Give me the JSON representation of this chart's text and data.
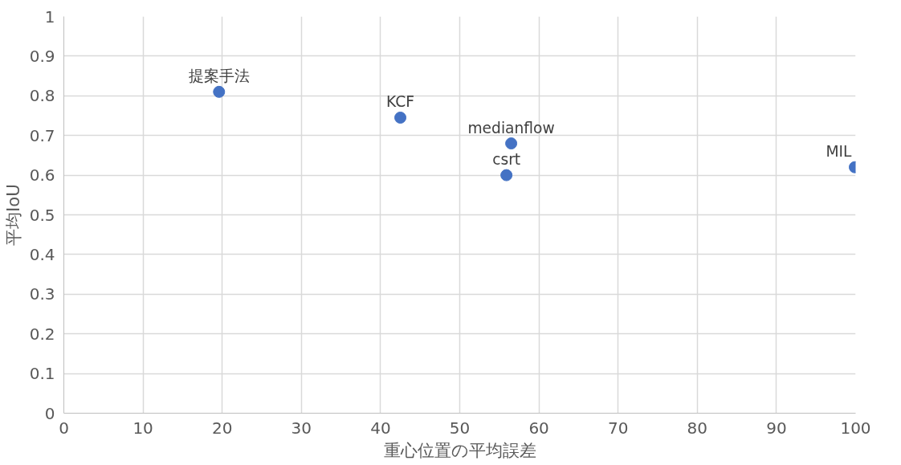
{
  "chart_data": {
    "type": "scatter",
    "xlabel": "重心位置の平均誤差",
    "ylabel": "平均IoU",
    "xlim": [
      0,
      100
    ],
    "ylim": [
      0,
      1
    ],
    "xticks": [
      0,
      10,
      20,
      30,
      40,
      50,
      60,
      70,
      80,
      90,
      100
    ],
    "yticks": [
      0,
      0.1,
      0.2,
      0.3,
      0.4,
      0.5,
      0.6,
      0.7,
      0.8,
      0.9,
      1
    ],
    "grid": true,
    "legend": false,
    "marker": "circle",
    "series": [
      {
        "name": "提案手法",
        "color": "#4472c4",
        "x": [
          19.6
        ],
        "values": [
          0.81
        ]
      },
      {
        "name": "KCF",
        "color": "#4472c4",
        "x": [
          42.5
        ],
        "values": [
          0.745
        ]
      },
      {
        "name": "medianflow",
        "color": "#4472c4",
        "x": [
          56.5
        ],
        "values": [
          0.68
        ]
      },
      {
        "name": "csrt",
        "color": "#4472c4",
        "x": [
          55.9
        ],
        "values": [
          0.6
        ]
      },
      {
        "name": "MIL",
        "color": "#4472c4",
        "x": [
          99.9
        ],
        "values": [
          0.62
        ]
      }
    ]
  }
}
